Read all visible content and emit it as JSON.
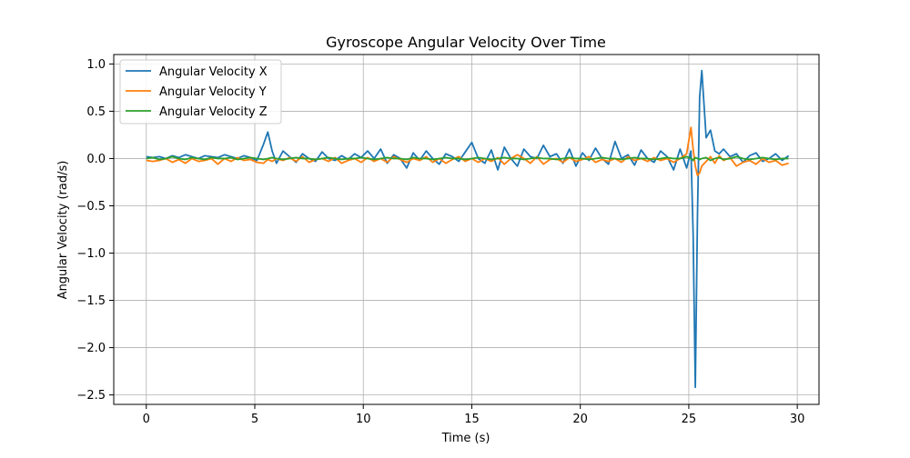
{
  "chart_data": {
    "type": "line",
    "title": "Gyroscope Angular Velocity Over Time",
    "xlabel": "Time (s)",
    "ylabel": "Angular Velocity (rad/s)",
    "xlim": [
      -1.5,
      31.0
    ],
    "ylim": [
      -2.6,
      1.1
    ],
    "xticks": [
      0,
      5,
      10,
      15,
      20,
      25,
      30
    ],
    "yticks": [
      1.0,
      0.5,
      0.0,
      -0.5,
      -1.0,
      -1.5,
      -2.0,
      -2.5
    ],
    "ytick_labels": [
      "1.0",
      "0.5",
      "0.0",
      "−0.5",
      "−1.0",
      "−1.5",
      "−2.0",
      "−2.5"
    ],
    "grid": true,
    "legend_position": "top-left",
    "x": [
      0.0,
      0.3,
      0.6,
      0.9,
      1.2,
      1.5,
      1.8,
      2.1,
      2.4,
      2.7,
      3.0,
      3.3,
      3.6,
      3.9,
      4.2,
      4.5,
      4.8,
      5.1,
      5.4,
      5.6,
      5.8,
      6.0,
      6.3,
      6.6,
      6.9,
      7.2,
      7.5,
      7.8,
      8.1,
      8.4,
      8.7,
      9.0,
      9.3,
      9.6,
      9.9,
      10.2,
      10.5,
      10.8,
      11.1,
      11.4,
      11.7,
      12.0,
      12.3,
      12.6,
      12.9,
      13.2,
      13.5,
      13.8,
      14.1,
      14.4,
      14.7,
      15.0,
      15.3,
      15.6,
      15.9,
      16.2,
      16.5,
      16.8,
      17.1,
      17.4,
      17.7,
      18.0,
      18.3,
      18.6,
      18.9,
      19.2,
      19.5,
      19.8,
      20.1,
      20.4,
      20.7,
      21.0,
      21.3,
      21.6,
      21.9,
      22.2,
      22.5,
      22.8,
      23.1,
      23.4,
      23.7,
      24.0,
      24.3,
      24.6,
      24.9,
      25.1,
      25.2,
      25.3,
      25.4,
      25.5,
      25.6,
      25.8,
      26.0,
      26.2,
      26.4,
      26.6,
      26.9,
      27.2,
      27.5,
      27.8,
      28.1,
      28.4,
      28.7,
      29.0,
      29.3,
      29.6
    ],
    "series": [
      {
        "name": "Angular Velocity X",
        "color": "#1f77b4",
        "values": [
          0.02,
          0.01,
          0.02,
          0.0,
          0.03,
          0.01,
          0.04,
          0.02,
          0.0,
          0.03,
          0.02,
          0.01,
          0.04,
          0.02,
          0.0,
          0.03,
          0.01,
          -0.02,
          0.15,
          0.28,
          0.08,
          -0.05,
          0.08,
          0.02,
          -0.04,
          0.05,
          0.0,
          -0.03,
          0.07,
          0.0,
          -0.02,
          0.03,
          -0.01,
          0.05,
          0.01,
          0.08,
          0.0,
          0.1,
          -0.05,
          0.04,
          0.0,
          -0.1,
          0.06,
          -0.02,
          0.08,
          0.0,
          -0.06,
          0.05,
          0.02,
          -0.03,
          0.07,
          0.17,
          0.0,
          -0.05,
          0.09,
          -0.12,
          0.12,
          0.0,
          -0.08,
          0.1,
          0.02,
          0.0,
          0.14,
          0.02,
          0.05,
          -0.05,
          0.1,
          -0.08,
          0.06,
          -0.02,
          0.11,
          0.0,
          -0.06,
          0.18,
          0.0,
          0.04,
          -0.07,
          0.09,
          0.0,
          -0.04,
          0.08,
          0.02,
          -0.12,
          0.1,
          -0.1,
          0.08,
          -0.8,
          -2.42,
          -0.6,
          0.65,
          0.93,
          0.22,
          0.3,
          0.08,
          0.05,
          0.1,
          0.02,
          0.05,
          -0.04,
          0.03,
          0.06,
          -0.03,
          0.0,
          0.05,
          -0.02,
          0.03
        ]
      },
      {
        "name": "Angular Velocity Y",
        "color": "#ff7f0e",
        "values": [
          -0.02,
          -0.03,
          -0.02,
          0.0,
          -0.04,
          -0.01,
          -0.05,
          0.0,
          -0.03,
          -0.02,
          0.0,
          -0.06,
          0.0,
          -0.03,
          0.01,
          -0.02,
          -0.01,
          -0.04,
          -0.05,
          -0.01,
          -0.03,
          0.0,
          -0.02,
          0.01,
          -0.03,
          0.02,
          -0.04,
          -0.01,
          0.0,
          -0.03,
          0.01,
          -0.05,
          -0.02,
          0.0,
          -0.04,
          0.01,
          -0.03,
          0.0,
          -0.04,
          0.02,
          -0.01,
          -0.04,
          0.0,
          -0.02,
          0.02,
          -0.04,
          0.0,
          -0.05,
          -0.01,
          0.02,
          -0.03,
          0.0,
          -0.04,
          0.0,
          -0.03,
          0.01,
          -0.06,
          0.0,
          0.04,
          0.0,
          -0.05,
          0.02,
          -0.06,
          -0.01,
          0.0,
          -0.04,
          0.01,
          -0.03,
          -0.01,
          0.02,
          -0.04,
          -0.01,
          -0.03,
          0.0,
          -0.04,
          0.02,
          -0.02,
          0.0,
          -0.03,
          0.01,
          -0.02,
          0.0,
          -0.04,
          0.0,
          0.05,
          0.33,
          0.1,
          -0.08,
          -0.18,
          -0.15,
          -0.08,
          -0.03,
          0.02,
          -0.05,
          0.03,
          -0.02,
          0.01,
          -0.08,
          -0.04,
          -0.02,
          -0.06,
          0.0,
          -0.04,
          -0.02,
          -0.07,
          -0.05
        ]
      },
      {
        "name": "Angular Velocity Z",
        "color": "#2ca02c",
        "values": [
          0.0,
          0.01,
          -0.01,
          0.0,
          0.02,
          0.0,
          -0.01,
          0.01,
          0.0,
          -0.01,
          0.01,
          0.0,
          0.0,
          0.01,
          -0.01,
          0.0,
          0.01,
          0.0,
          -0.01,
          0.0,
          0.01,
          0.0,
          -0.01,
          0.0,
          0.01,
          0.0,
          0.0,
          -0.01,
          0.0,
          0.01,
          0.0,
          -0.01,
          0.0,
          0.0,
          0.01,
          0.0,
          -0.01,
          0.0,
          0.01,
          0.0,
          0.0,
          -0.01,
          0.01,
          0.0,
          0.0,
          -0.01,
          0.0,
          0.01,
          0.0,
          0.0,
          -0.01,
          0.0,
          0.01,
          0.0,
          -0.01,
          0.0,
          0.01,
          0.0,
          0.0,
          -0.01,
          0.0,
          0.01,
          0.0,
          0.0,
          -0.01,
          0.0,
          0.01,
          0.0,
          0.0,
          -0.01,
          0.0,
          0.01,
          0.0,
          0.0,
          -0.01,
          0.0,
          0.01,
          0.0,
          0.0,
          -0.01,
          0.0,
          0.01,
          0.0,
          0.0,
          0.02,
          0.0,
          -0.02,
          0.01,
          0.0,
          -0.01,
          0.0,
          0.01,
          -0.02,
          0.0,
          0.01,
          -0.01,
          0.0,
          0.02,
          0.0,
          -0.01,
          0.0,
          0.01,
          0.0,
          -0.01,
          0.0,
          0.0
        ]
      }
    ]
  }
}
